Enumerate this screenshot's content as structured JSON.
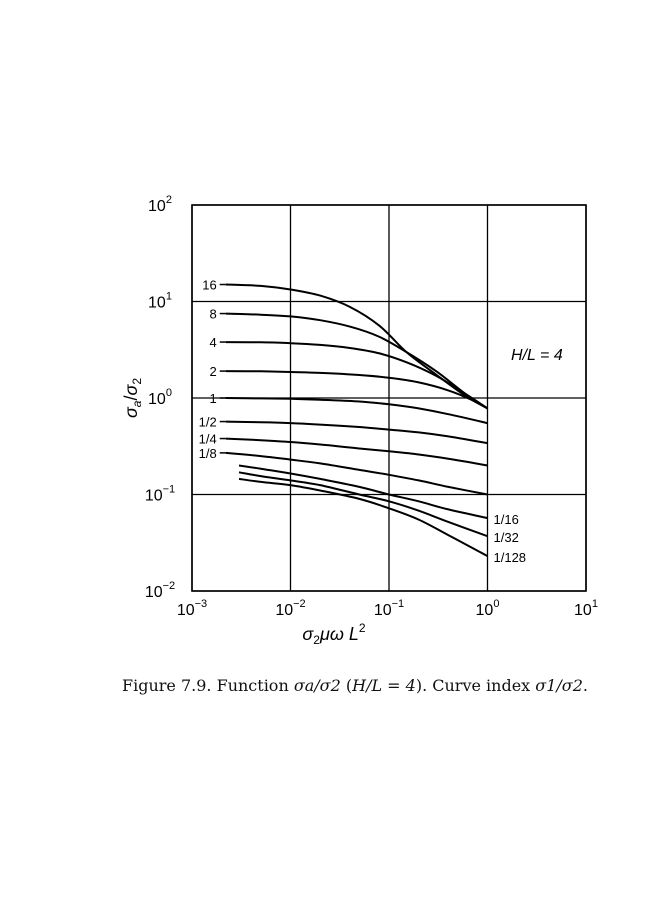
{
  "chart_data": {
    "type": "line",
    "x_scale": "log",
    "y_scale": "log",
    "xlim": [
      0.001,
      10
    ],
    "ylim": [
      0.01,
      100
    ],
    "grid": true,
    "x_ticks": [
      {
        "value": 0.001,
        "base": "10",
        "exp": "−3"
      },
      {
        "value": 0.01,
        "base": "10",
        "exp": "−2"
      },
      {
        "value": 0.1,
        "base": "10",
        "exp": "−1"
      },
      {
        "value": 1,
        "base": "10",
        "exp": "0"
      },
      {
        "value": 10,
        "base": "10",
        "exp": "1"
      }
    ],
    "y_ticks": [
      {
        "value": 0.01,
        "base": "10",
        "exp": "−2"
      },
      {
        "value": 0.1,
        "base": "10",
        "exp": "−1"
      },
      {
        "value": 1,
        "base": "10",
        "exp": "0"
      },
      {
        "value": 10,
        "base": "10",
        "exp": "1"
      },
      {
        "value": 100,
        "base": "10",
        "exp": "2"
      }
    ],
    "xlabel": {
      "main": "σ",
      "sub": "2",
      "mid": "μω L",
      "sup": "2"
    },
    "ylabel": {
      "a": "σ",
      "sub_a": "a",
      "slash": "/",
      "b": "σ",
      "sub_b": "2"
    },
    "annotation": "H/L = 4",
    "series": [
      {
        "name": "16",
        "label_side": "left",
        "x": [
          0.0022,
          0.005,
          0.01,
          0.02,
          0.04,
          0.08,
          0.15,
          0.3,
          0.6,
          1.0
        ],
        "y": [
          15,
          14.5,
          13.3,
          11.5,
          8.8,
          5.6,
          3.0,
          1.75,
          1.05,
          0.78
        ]
      },
      {
        "name": "8",
        "label_side": "left",
        "x": [
          0.0022,
          0.005,
          0.01,
          0.02,
          0.04,
          0.08,
          0.15,
          0.3,
          0.6,
          1.0
        ],
        "y": [
          7.5,
          7.3,
          7.0,
          6.4,
          5.5,
          4.3,
          3.0,
          1.9,
          1.1,
          0.78
        ]
      },
      {
        "name": "4",
        "label_side": "left",
        "x": [
          0.0022,
          0.005,
          0.01,
          0.02,
          0.04,
          0.08,
          0.15,
          0.3,
          0.6,
          1.0
        ],
        "y": [
          3.8,
          3.78,
          3.7,
          3.55,
          3.3,
          2.9,
          2.35,
          1.7,
          1.1,
          0.78
        ]
      },
      {
        "name": "2",
        "label_side": "left",
        "x": [
          0.0022,
          0.005,
          0.01,
          0.02,
          0.05,
          0.1,
          0.2,
          0.4,
          0.7,
          1.0
        ],
        "y": [
          1.9,
          1.89,
          1.86,
          1.82,
          1.73,
          1.62,
          1.45,
          1.2,
          0.95,
          0.78
        ]
      },
      {
        "name": "1",
        "label_side": "left",
        "x": [
          0.0022,
          0.005,
          0.01,
          0.02,
          0.05,
          0.1,
          0.2,
          0.4,
          1.0
        ],
        "y": [
          1.0,
          0.99,
          0.98,
          0.96,
          0.92,
          0.86,
          0.78,
          0.68,
          0.55
        ]
      },
      {
        "name": "1/2",
        "label_side": "left",
        "x": [
          0.0022,
          0.005,
          0.01,
          0.02,
          0.05,
          0.1,
          0.2,
          0.4,
          1.0
        ],
        "y": [
          0.57,
          0.56,
          0.55,
          0.53,
          0.5,
          0.47,
          0.44,
          0.4,
          0.34
        ]
      },
      {
        "name": "1/4",
        "label_side": "left",
        "x": [
          0.0022,
          0.005,
          0.01,
          0.02,
          0.05,
          0.1,
          0.2,
          0.4,
          1.0
        ],
        "y": [
          0.38,
          0.365,
          0.35,
          0.33,
          0.3,
          0.28,
          0.26,
          0.235,
          0.2
        ]
      },
      {
        "name": "1/8",
        "label_side": "left",
        "x": [
          0.0022,
          0.005,
          0.01,
          0.02,
          0.05,
          0.1,
          0.2,
          0.4,
          1.0
        ],
        "y": [
          0.27,
          0.25,
          0.23,
          0.21,
          0.18,
          0.16,
          0.14,
          0.12,
          0.1
        ]
      },
      {
        "name": "1/16",
        "label_side": "right",
        "x": [
          0.003,
          0.005,
          0.01,
          0.02,
          0.05,
          0.1,
          0.2,
          0.4,
          1.0
        ],
        "y": [
          0.2,
          0.185,
          0.165,
          0.145,
          0.12,
          0.1,
          0.085,
          0.07,
          0.057
        ]
      },
      {
        "name": "1/32",
        "label_side": "right",
        "x": [
          0.003,
          0.005,
          0.01,
          0.02,
          0.05,
          0.1,
          0.2,
          0.4,
          1.0
        ],
        "y": [
          0.17,
          0.155,
          0.14,
          0.125,
          0.1,
          0.085,
          0.068,
          0.052,
          0.037
        ]
      },
      {
        "name": "1/128",
        "label_side": "right",
        "x": [
          0.003,
          0.005,
          0.01,
          0.02,
          0.05,
          0.1,
          0.2,
          0.4,
          1.0
        ],
        "y": [
          0.145,
          0.135,
          0.125,
          0.11,
          0.09,
          0.072,
          0.055,
          0.038,
          0.023
        ]
      }
    ]
  },
  "caption": {
    "prefix": "Figure 7.9.  Function ",
    "func": "σa/σ2",
    "mid": " (",
    "param": "H/L = 4",
    "suffix": ").  Curve index ",
    "index": "σ1/σ2",
    "end": "."
  }
}
